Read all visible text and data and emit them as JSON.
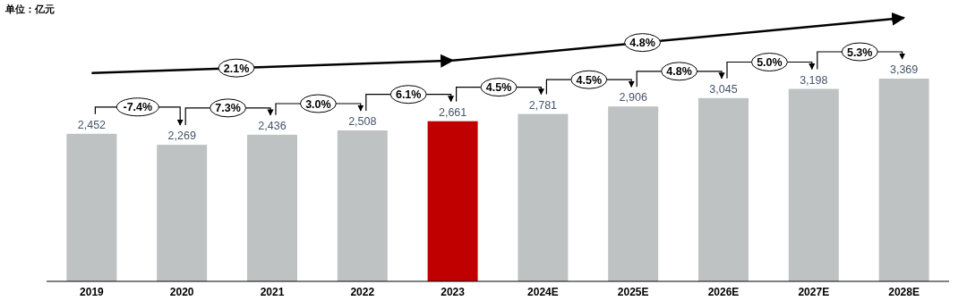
{
  "chart_data": {
    "type": "bar",
    "subtitle": "单位：亿元",
    "categories": [
      "2019",
      "2020",
      "2021",
      "2022",
      "2023",
      "2024E",
      "2025E",
      "2026E",
      "2027E",
      "2028E"
    ],
    "values": [
      2452,
      2269,
      2436,
      2508,
      2661,
      2781,
      2906,
      3045,
      3198,
      3369
    ],
    "colors": [
      "#bfc2c3",
      "#bfc2c3",
      "#bfc2c3",
      "#bfc2c3",
      "#c00000",
      "#bfc2c3",
      "#bfc2c3",
      "#bfc2c3",
      "#bfc2c3",
      "#bfc2c3"
    ],
    "value_labels": [
      "2,452",
      "2,269",
      "2,436",
      "2,508",
      "2,661",
      "2,781",
      "2,906",
      "3,045",
      "3,198",
      "3,369"
    ],
    "annotations": [
      "-7.4%",
      "7.3%",
      "3.0%",
      "6.1%",
      "4.5%",
      "4.5%",
      "4.8%",
      "5.0%",
      "5.3%",
      "2.1%",
      "4.8%"
    ]
  }
}
